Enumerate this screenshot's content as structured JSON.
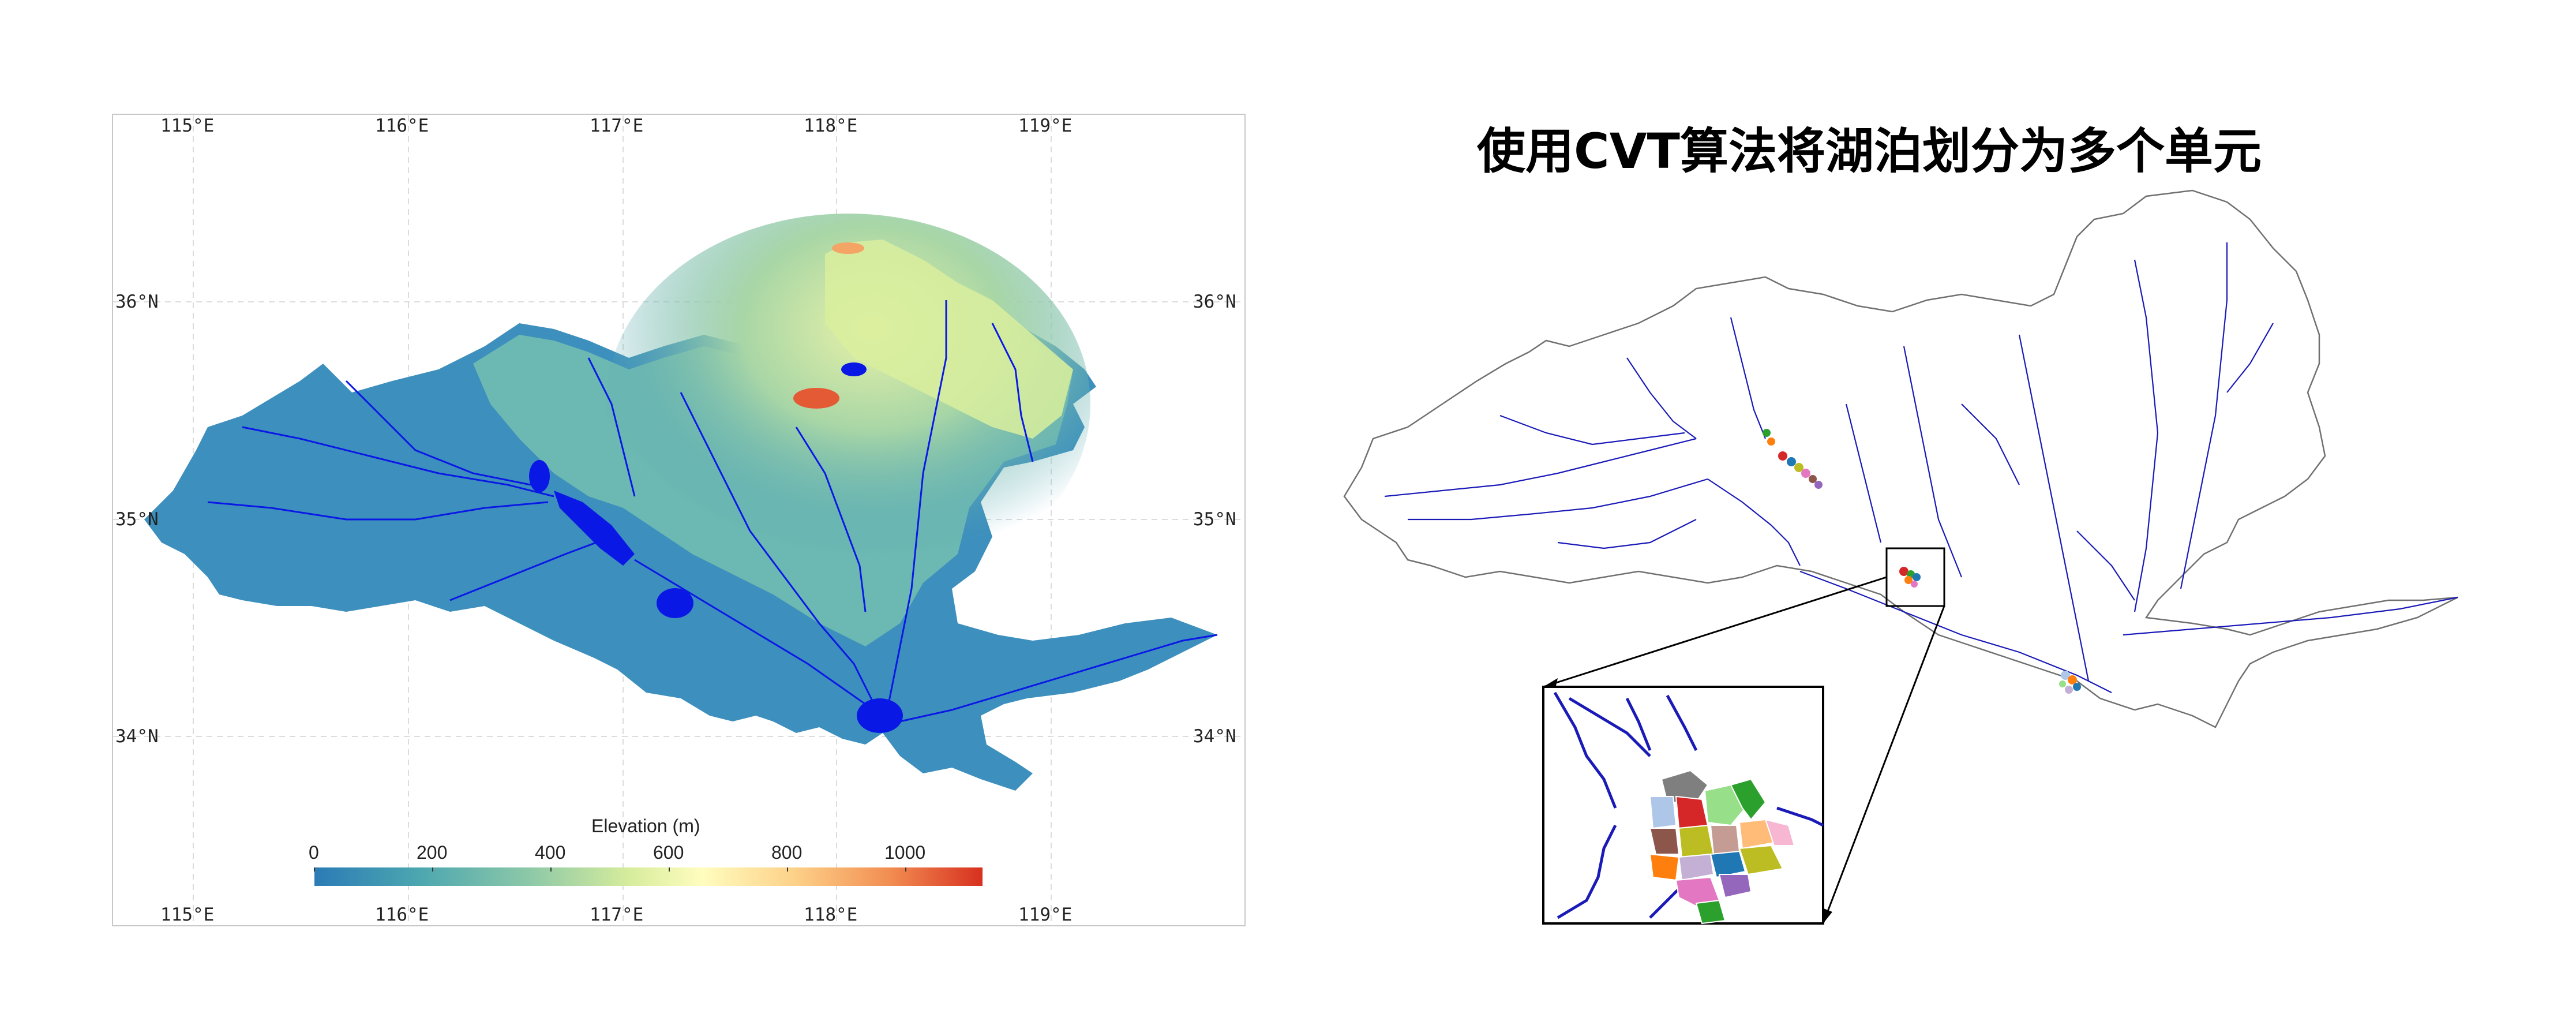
{
  "elevation_map": {
    "lon_labels": [
      "115°E",
      "116°E",
      "117°E",
      "118°E",
      "119°E"
    ],
    "lat_labels": [
      "36°N",
      "35°N",
      "34°N"
    ],
    "colorbar": {
      "title": "Elevation (m)",
      "ticks": [
        "0",
        "200",
        "400",
        "600",
        "800",
        "1000"
      ],
      "range": [
        0,
        1130
      ],
      "colors": [
        "#2c7bb6",
        "#4aa5b0",
        "#8cc8a8",
        "#d6ec9c",
        "#fffdbf",
        "#fdd088",
        "#f28e52",
        "#d7301f"
      ]
    },
    "colors": {
      "basin_low": "#3d8fbd",
      "basin_mid": "#6cb8b2",
      "highland": "#d9ee9d",
      "peak": "#e45a35",
      "water": "#0a18e6"
    }
  },
  "cvt_map": {
    "title": "使用CVT算法将湖泊划分为多个单元",
    "colors": {
      "river": "#1a1ab8",
      "outline": "#707070",
      "inset_border": "#000000"
    },
    "cell_colors": [
      "#1f77b4",
      "#ff7f0e",
      "#2ca02c",
      "#d62728",
      "#9467bd",
      "#8c564b",
      "#e377c2",
      "#7f7f7f",
      "#bcbd22",
      "#aec7e8",
      "#ffbb78",
      "#98df8a",
      "#c5b0d5",
      "#c49c94",
      "#f7b6d2"
    ]
  }
}
